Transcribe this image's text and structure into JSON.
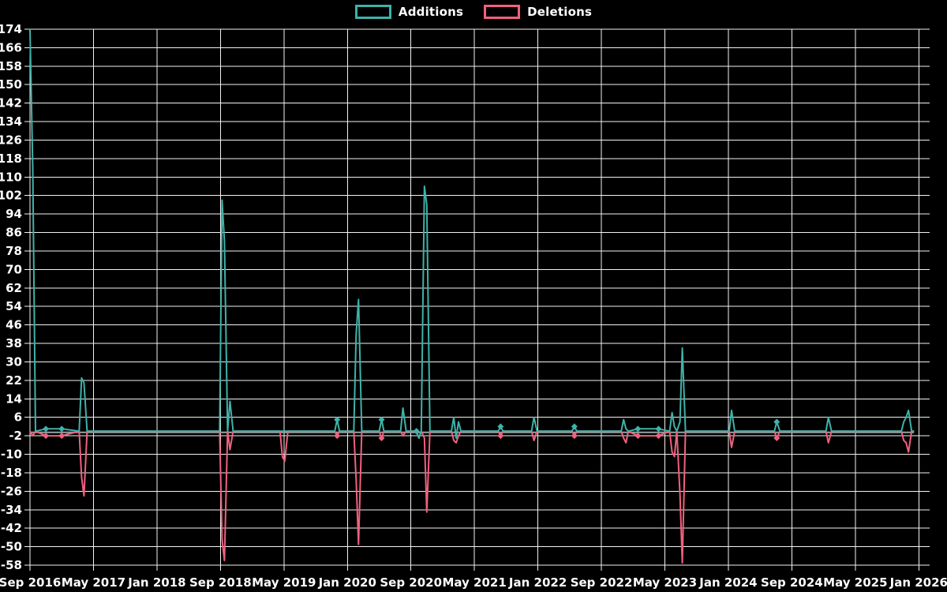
{
  "ui": {
    "background_color": "#000000",
    "grid_color": "#f2f2f2",
    "zero_line_color": "#93a6a3",
    "text_color": "#ffffff"
  },
  "chart_data": {
    "type": "line",
    "title": "",
    "xlabel": "",
    "ylabel": "",
    "legend_position": "top-center",
    "grid": true,
    "x_unit": "months since Sep 2016",
    "ylim": [
      -58,
      174
    ],
    "y_tick_step": 8,
    "y_ticks": [
      174,
      166,
      158,
      150,
      142,
      134,
      126,
      118,
      110,
      102,
      94,
      86,
      78,
      70,
      62,
      54,
      46,
      38,
      30,
      22,
      14,
      6,
      -2,
      -10,
      -18,
      -26,
      -34,
      -42,
      -50,
      -58
    ],
    "x_ticks": [
      {
        "m": 0,
        "label": "Sep 2016"
      },
      {
        "m": 8,
        "label": "May 2017"
      },
      {
        "m": 16,
        "label": "Jan 2018"
      },
      {
        "m": 24,
        "label": "Sep 2018"
      },
      {
        "m": 32,
        "label": "May 2019"
      },
      {
        "m": 40,
        "label": "Jan 2020"
      },
      {
        "m": 48,
        "label": "Sep 2020"
      },
      {
        "m": 56,
        "label": "May 2021"
      },
      {
        "m": 64,
        "label": "Jan 2022"
      },
      {
        "m": 72,
        "label": "Sep 2022"
      },
      {
        "m": 80,
        "label": "May 2023"
      },
      {
        "m": 88,
        "label": "Jan 2024"
      },
      {
        "m": 96,
        "label": "Sep 2024"
      },
      {
        "m": 104,
        "label": "May 2025"
      },
      {
        "m": 112,
        "label": "Jan 2026"
      }
    ],
    "series": [
      {
        "name": "Additions",
        "color": "#3fb2a9"
      },
      {
        "name": "Deletions",
        "color": "#f0617f"
      }
    ],
    "points_format": [
      "months_since_start",
      "additions",
      "deletions",
      "marker_flag"
    ],
    "points": [
      [
        0,
        174,
        0,
        0
      ],
      [
        0.35,
        114,
        -2,
        0
      ],
      [
        0.7,
        0,
        0,
        0
      ],
      [
        2.0,
        1,
        -2,
        1
      ],
      [
        4.0,
        1,
        -2,
        1
      ],
      [
        6.2,
        0,
        0,
        0
      ],
      [
        6.5,
        23,
        -20,
        0
      ],
      [
        6.8,
        21,
        -28,
        0
      ],
      [
        7.2,
        0,
        0,
        0
      ],
      [
        23.9,
        0,
        0,
        0
      ],
      [
        24.2,
        100,
        -47,
        0
      ],
      [
        24.5,
        82,
        -56,
        0
      ],
      [
        24.9,
        0,
        0,
        0
      ],
      [
        25.2,
        13,
        -8,
        0
      ],
      [
        25.6,
        0,
        0,
        0
      ],
      [
        31.5,
        0,
        0,
        0
      ],
      [
        31.8,
        0,
        -11,
        0
      ],
      [
        32.1,
        0,
        -13,
        0
      ],
      [
        32.5,
        0,
        0,
        0
      ],
      [
        38.4,
        0,
        0,
        0
      ],
      [
        38.7,
        5,
        -2,
        1
      ],
      [
        39.0,
        0,
        0,
        0
      ],
      [
        40.8,
        0,
        0,
        0
      ],
      [
        41.1,
        42,
        -21,
        0
      ],
      [
        41.4,
        57,
        -49,
        0
      ],
      [
        41.8,
        0,
        0,
        0
      ],
      [
        44.0,
        0,
        0,
        0
      ],
      [
        44.3,
        5,
        -3,
        1
      ],
      [
        44.6,
        0,
        0,
        0
      ],
      [
        46.7,
        0,
        0,
        0
      ],
      [
        47.0,
        10,
        -2,
        0
      ],
      [
        47.4,
        0,
        0,
        0
      ],
      [
        48.7,
        0,
        0,
        1
      ],
      [
        49.0,
        -3,
        -3,
        0
      ],
      [
        49.3,
        0,
        0,
        0
      ],
      [
        49.7,
        106,
        -3,
        0
      ],
      [
        50.0,
        98,
        -35,
        0
      ],
      [
        50.4,
        0,
        0,
        0
      ],
      [
        53.1,
        0,
        0,
        0
      ],
      [
        53.4,
        6,
        -4,
        0
      ],
      [
        53.7,
        -3,
        -5,
        0
      ],
      [
        54.0,
        4,
        -2,
        0
      ],
      [
        54.3,
        0,
        0,
        0
      ],
      [
        59.0,
        0,
        0,
        0
      ],
      [
        59.3,
        2,
        -2,
        1
      ],
      [
        59.6,
        0,
        0,
        0
      ],
      [
        63.2,
        0,
        0,
        0
      ],
      [
        63.5,
        6,
        -4,
        0
      ],
      [
        63.9,
        0,
        0,
        0
      ],
      [
        68.3,
        0,
        0,
        0
      ],
      [
        68.6,
        2,
        -2,
        1
      ],
      [
        68.9,
        0,
        0,
        0
      ],
      [
        74.5,
        0,
        0,
        0
      ],
      [
        74.8,
        5,
        -3,
        0
      ],
      [
        75.1,
        1,
        -5,
        0
      ],
      [
        75.4,
        0,
        0,
        0
      ],
      [
        76.6,
        1,
        -2,
        1
      ],
      [
        79.2,
        1,
        -2,
        1
      ],
      [
        80.6,
        0,
        0,
        0
      ],
      [
        80.9,
        8,
        -9,
        0
      ],
      [
        81.2,
        2,
        -11,
        0
      ],
      [
        81.5,
        0,
        0,
        0
      ],
      [
        81.9,
        4,
        -27,
        0
      ],
      [
        82.2,
        36,
        -57,
        0
      ],
      [
        82.6,
        0,
        0,
        0
      ],
      [
        88.1,
        0,
        0,
        0
      ],
      [
        88.4,
        9,
        -7,
        0
      ],
      [
        88.8,
        0,
        0,
        0
      ],
      [
        93.8,
        0,
        0,
        0
      ],
      [
        94.1,
        4,
        -3,
        1
      ],
      [
        94.5,
        0,
        0,
        0
      ],
      [
        100.3,
        0,
        0,
        0
      ],
      [
        100.6,
        6,
        -5,
        0
      ],
      [
        101.0,
        0,
        0,
        0
      ],
      [
        109.8,
        0,
        0,
        0
      ],
      [
        110.1,
        4,
        -4,
        0
      ],
      [
        110.4,
        6,
        -5,
        0
      ],
      [
        110.7,
        9,
        -9,
        0
      ],
      [
        111.1,
        0,
        0,
        0
      ],
      [
        111.4,
        0,
        0,
        0
      ]
    ]
  }
}
